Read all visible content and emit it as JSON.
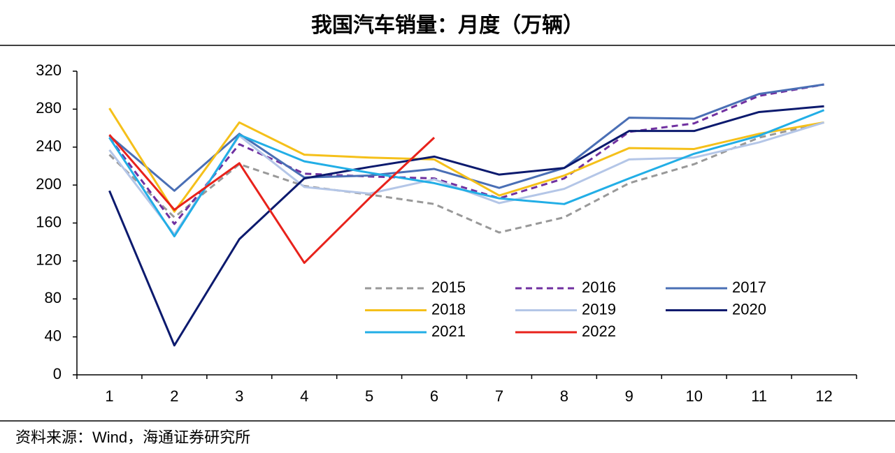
{
  "chart_data": {
    "type": "line",
    "title": "我国汽车销量：月度（万辆）",
    "source": "资料来源：Wind，海通证券研究所",
    "categories": [
      "1",
      "2",
      "3",
      "4",
      "5",
      "6",
      "7",
      "8",
      "9",
      "10",
      "11",
      "12"
    ],
    "ylim": [
      0,
      320
    ],
    "yticks": [
      0,
      40,
      80,
      120,
      160,
      200,
      240,
      280,
      320
    ],
    "grid": false,
    "series": [
      {
        "name": "2015",
        "color": "#999999",
        "dash": true,
        "values": [
          232,
          166,
          222,
          199,
          190,
          180,
          150,
          166,
          202,
          222,
          250,
          266
        ]
      },
      {
        "name": "2016",
        "color": "#7030a0",
        "dash": true,
        "values": [
          250,
          159,
          243,
          212,
          209,
          207,
          186,
          207,
          256,
          265,
          294,
          306
        ]
      },
      {
        "name": "2017",
        "color": "#4a6fb5",
        "dash": false,
        "values": [
          252,
          194,
          254,
          208,
          210,
          217,
          197,
          218,
          271,
          270,
          296,
          306
        ]
      },
      {
        "name": "2018",
        "color": "#f5c01a",
        "dash": false,
        "values": [
          281,
          172,
          266,
          232,
          229,
          227,
          189,
          210,
          239,
          238,
          254,
          266
        ]
      },
      {
        "name": "2019",
        "color": "#b4c6e7",
        "dash": false,
        "values": [
          237,
          148,
          252,
          198,
          191,
          206,
          181,
          196,
          227,
          229,
          245,
          266
        ]
      },
      {
        "name": "2020",
        "color": "#0c1a6e",
        "dash": false,
        "values": [
          194,
          31,
          143,
          207,
          219,
          230,
          211,
          218,
          257,
          257,
          277,
          283
        ]
      },
      {
        "name": "2021",
        "color": "#22aee6",
        "dash": false,
        "values": [
          250,
          146,
          253,
          225,
          213,
          202,
          186,
          180,
          207,
          233,
          252,
          279
        ]
      },
      {
        "name": "2022",
        "color": "#e8221b",
        "dash": false,
        "values": [
          253,
          174,
          223,
          118,
          186,
          250,
          null,
          null,
          null,
          null,
          null,
          null
        ]
      }
    ]
  }
}
